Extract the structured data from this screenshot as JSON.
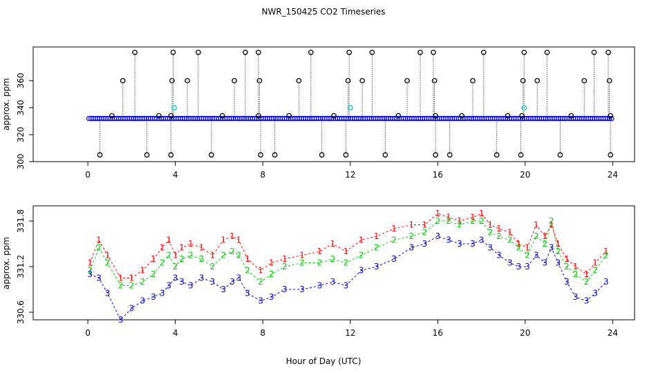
{
  "title": "NWR_150425  CO2 Timeseries",
  "xlabel": "Hour of Day (UTC)",
  "colors": {
    "series1": "#ff0000",
    "series2": "#00cc00",
    "series3": "#0000cc",
    "raw": "#000000",
    "flagged": "#00cccc",
    "mean": "#0000dd"
  },
  "chart_data": [
    {
      "type": "scatter",
      "panel": "top",
      "ylabel": "approx. ppm",
      "xlim": [
        -2.5,
        25
      ],
      "ylim": [
        300,
        385
      ],
      "xticks": [
        0,
        4,
        8,
        12,
        16,
        20,
        24
      ],
      "yticks": [
        300,
        320,
        340,
        360
      ],
      "baseline": 332,
      "raw_series_symbol": "o",
      "high_spikes": [
        {
          "x": 2.15,
          "y": 381
        },
        {
          "x": 3.9,
          "y": 381
        },
        {
          "x": 5.05,
          "y": 381
        },
        {
          "x": 7.2,
          "y": 381
        },
        {
          "x": 7.8,
          "y": 381
        },
        {
          "x": 10.2,
          "y": 381
        },
        {
          "x": 11.95,
          "y": 381
        },
        {
          "x": 13.0,
          "y": 381
        },
        {
          "x": 15.2,
          "y": 381
        },
        {
          "x": 15.8,
          "y": 381
        },
        {
          "x": 18.1,
          "y": 381
        },
        {
          "x": 19.95,
          "y": 381
        },
        {
          "x": 21.0,
          "y": 381
        },
        {
          "x": 23.15,
          "y": 381
        },
        {
          "x": 23.8,
          "y": 381
        },
        {
          "x": 1.6,
          "y": 360
        },
        {
          "x": 3.85,
          "y": 360
        },
        {
          "x": 4.55,
          "y": 360
        },
        {
          "x": 6.7,
          "y": 360
        },
        {
          "x": 7.85,
          "y": 360
        },
        {
          "x": 9.65,
          "y": 360
        },
        {
          "x": 11.9,
          "y": 360
        },
        {
          "x": 12.55,
          "y": 360
        },
        {
          "x": 14.6,
          "y": 360
        },
        {
          "x": 15.85,
          "y": 360
        },
        {
          "x": 17.6,
          "y": 360
        },
        {
          "x": 19.9,
          "y": 360
        },
        {
          "x": 20.55,
          "y": 360
        },
        {
          "x": 22.7,
          "y": 360
        },
        {
          "x": 23.85,
          "y": 360
        }
      ],
      "low_spikes": [
        {
          "x": 0.55,
          "y": 305
        },
        {
          "x": 2.7,
          "y": 305
        },
        {
          "x": 3.8,
          "y": 305
        },
        {
          "x": 5.65,
          "y": 305
        },
        {
          "x": 7.9,
          "y": 305
        },
        {
          "x": 8.55,
          "y": 305
        },
        {
          "x": 10.7,
          "y": 305
        },
        {
          "x": 11.8,
          "y": 305
        },
        {
          "x": 13.6,
          "y": 305
        },
        {
          "x": 15.9,
          "y": 305
        },
        {
          "x": 16.55,
          "y": 305
        },
        {
          "x": 18.7,
          "y": 305
        },
        {
          "x": 19.8,
          "y": 305
        },
        {
          "x": 21.6,
          "y": 305
        },
        {
          "x": 23.9,
          "y": 305
        }
      ],
      "mid_points": [
        {
          "x": 1.1,
          "y": 334
        },
        {
          "x": 3.25,
          "y": 334
        },
        {
          "x": 3.8,
          "y": 334
        },
        {
          "x": 6.15,
          "y": 334
        },
        {
          "x": 7.8,
          "y": 334
        },
        {
          "x": 9.2,
          "y": 334
        },
        {
          "x": 11.25,
          "y": 334
        },
        {
          "x": 14.2,
          "y": 334
        },
        {
          "x": 15.9,
          "y": 334
        },
        {
          "x": 17.1,
          "y": 334
        },
        {
          "x": 19.2,
          "y": 334
        },
        {
          "x": 19.85,
          "y": 334
        },
        {
          "x": 22.1,
          "y": 334
        },
        {
          "x": 23.9,
          "y": 334
        }
      ],
      "flagged_points": [
        {
          "x": 3.95,
          "y": 340
        },
        {
          "x": 12.0,
          "y": 340
        },
        {
          "x": 19.95,
          "y": 340
        }
      ]
    },
    {
      "type": "line",
      "panel": "bottom",
      "ylabel": "approx. ppm",
      "xlim": [
        -2.5,
        25
      ],
      "ylim": [
        330.5,
        332.0
      ],
      "xticks": [
        0,
        4,
        8,
        12,
        16,
        20,
        24
      ],
      "yticks": [
        330.6,
        331.2,
        331.8
      ],
      "marker_labels": [
        "1",
        "2",
        "3"
      ],
      "x": [
        0.1,
        0.5,
        0.9,
        1.5,
        2.0,
        2.5,
        3.0,
        3.4,
        3.7,
        4.0,
        4.3,
        4.7,
        5.2,
        5.7,
        6.2,
        6.6,
        6.9,
        7.3,
        7.9,
        8.4,
        9.0,
        9.8,
        10.6,
        11.2,
        11.8,
        12.5,
        13.2,
        14.0,
        14.8,
        15.4,
        16.0,
        16.5,
        17.0,
        17.6,
        18.0,
        18.4,
        18.8,
        19.3,
        19.7,
        20.1,
        20.5,
        20.9,
        21.2,
        21.5,
        21.9,
        22.3,
        22.8,
        23.2,
        23.7
      ],
      "series": [
        {
          "values": [
            331.25,
            331.55,
            331.35,
            331.05,
            331.05,
            331.15,
            331.3,
            331.45,
            331.55,
            331.35,
            331.45,
            331.5,
            331.45,
            331.35,
            331.55,
            331.6,
            331.55,
            331.3,
            331.15,
            331.25,
            331.3,
            331.35,
            331.4,
            331.5,
            331.4,
            331.55,
            331.6,
            331.7,
            331.75,
            331.75,
            331.9,
            331.85,
            331.8,
            331.85,
            331.9,
            331.75,
            331.7,
            331.65,
            331.5,
            331.45,
            331.75,
            331.6,
            331.75,
            331.5,
            331.3,
            331.2,
            331.1,
            331.25,
            331.4
          ]
        },
        {
          "values": [
            331.15,
            331.45,
            331.25,
            330.95,
            330.95,
            331.0,
            331.1,
            331.25,
            331.35,
            331.2,
            331.3,
            331.35,
            331.3,
            331.2,
            331.35,
            331.4,
            331.35,
            331.15,
            331.0,
            331.1,
            331.2,
            331.25,
            331.25,
            331.3,
            331.25,
            331.35,
            331.45,
            331.55,
            331.6,
            331.65,
            331.8,
            331.8,
            331.75,
            331.8,
            331.8,
            331.65,
            331.6,
            331.55,
            331.45,
            331.35,
            331.6,
            331.5,
            331.8,
            331.4,
            331.2,
            331.1,
            331.0,
            331.15,
            331.35
          ]
        },
        {
          "values": [
            331.1,
            331.05,
            330.85,
            330.5,
            330.65,
            330.75,
            330.8,
            330.85,
            330.95,
            331.05,
            331.0,
            330.95,
            331.05,
            331.0,
            330.9,
            331.0,
            331.05,
            330.85,
            330.75,
            330.8,
            330.9,
            330.9,
            330.95,
            331.0,
            330.95,
            331.15,
            331.2,
            331.3,
            331.45,
            331.5,
            331.6,
            331.55,
            331.5,
            331.5,
            331.55,
            331.45,
            331.35,
            331.25,
            331.2,
            331.2,
            331.35,
            331.25,
            331.45,
            331.25,
            331.0,
            330.8,
            330.75,
            330.85,
            331.0
          ]
        }
      ]
    }
  ]
}
